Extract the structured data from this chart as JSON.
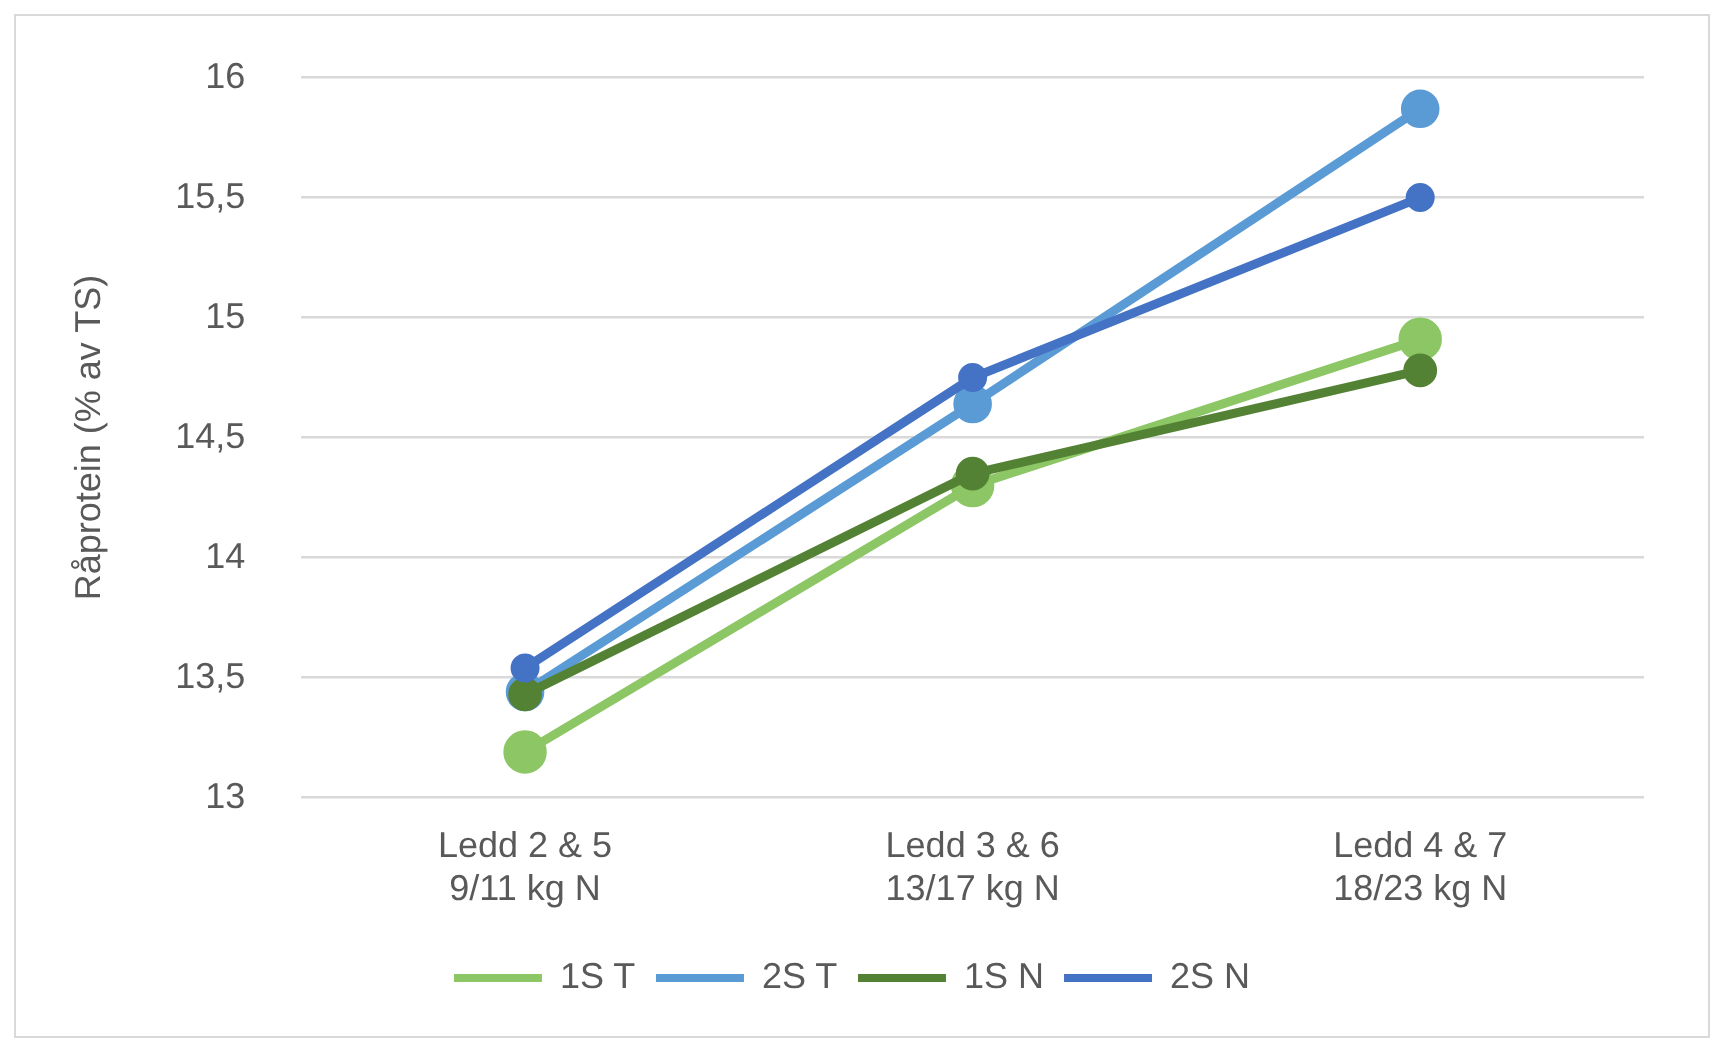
{
  "chart_data": {
    "type": "line",
    "ylabel": "Råprotein (% av TS)",
    "categories": [
      "Ledd 2 & 5\n9/11 kg N",
      "Ledd 3 & 6\n13/17 kg N",
      "Ledd 4 & 7\n18/23 kg N"
    ],
    "series": [
      {
        "name": "1S T",
        "color": "#8cc665",
        "values": [
          13.19,
          14.3,
          14.91
        ]
      },
      {
        "name": "2S T",
        "color": "#5b9bd5",
        "values": [
          13.44,
          14.64,
          15.87
        ]
      },
      {
        "name": "1S N",
        "color": "#548235",
        "values": [
          13.43,
          14.35,
          14.78
        ]
      },
      {
        "name": "2S N",
        "color": "#4472c4",
        "values": [
          13.54,
          14.75,
          15.5
        ]
      }
    ],
    "ylim": [
      13,
      16
    ],
    "yticks": [
      13,
      {
        "value": 13.5,
        "label": "13,5"
      },
      14,
      {
        "value": 14.5,
        "label": "14,5"
      },
      15,
      {
        "value": 15.5,
        "label": "15,5"
      },
      16
    ],
    "grid": "y",
    "legend": "bottom",
    "marker": "circle",
    "line_style": "solid"
  }
}
